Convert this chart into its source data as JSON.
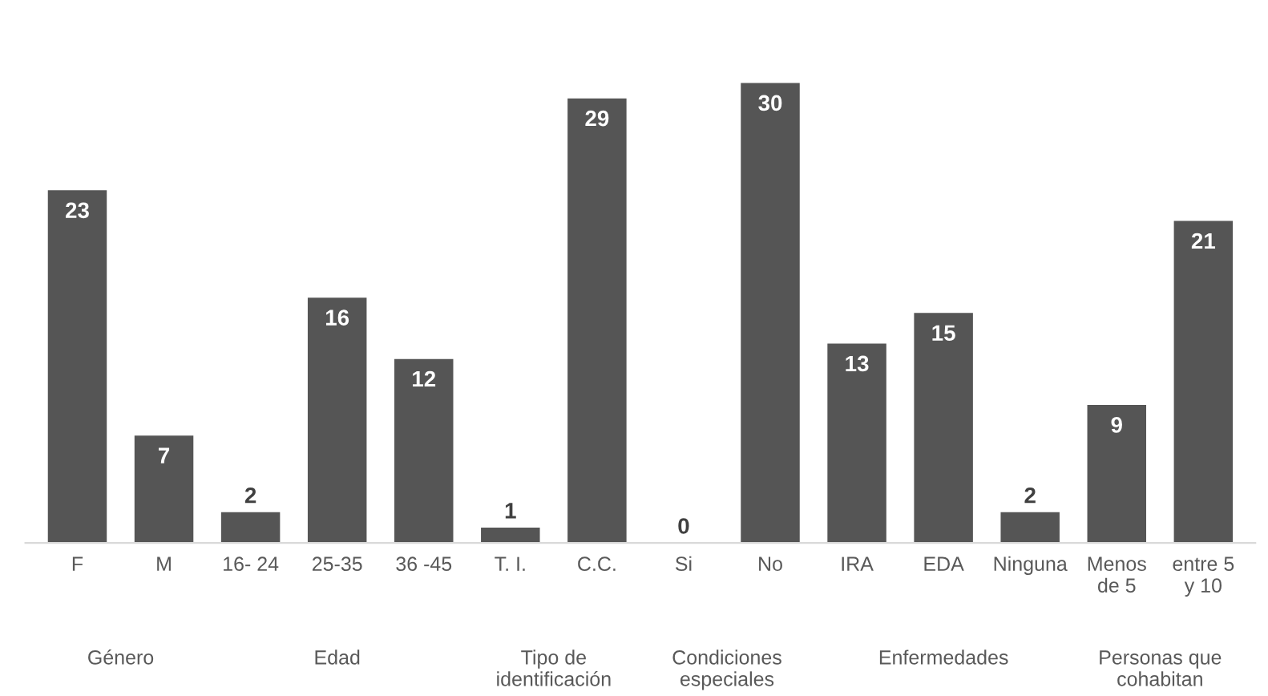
{
  "chart_data": {
    "type": "bar",
    "categories": [
      "F",
      "M",
      "16- 24",
      "25-35",
      "36 -45",
      "T. I.",
      "C.C.",
      "Si",
      "No",
      "IRA",
      "EDA",
      "Ninguna",
      "Menos\nde 5",
      "entre 5\ny 10"
    ],
    "values": [
      23,
      7,
      2,
      16,
      12,
      1,
      29,
      0,
      30,
      13,
      15,
      2,
      9,
      21
    ],
    "color": "#555555",
    "data_labels": true,
    "grid": false,
    "legend": false,
    "annotations": [
      "Género",
      "Edad",
      "Tipo de\nidentificación",
      "Condiciones\nespeciales",
      "Enfermedades",
      "Personas que\ncohabitan"
    ]
  }
}
